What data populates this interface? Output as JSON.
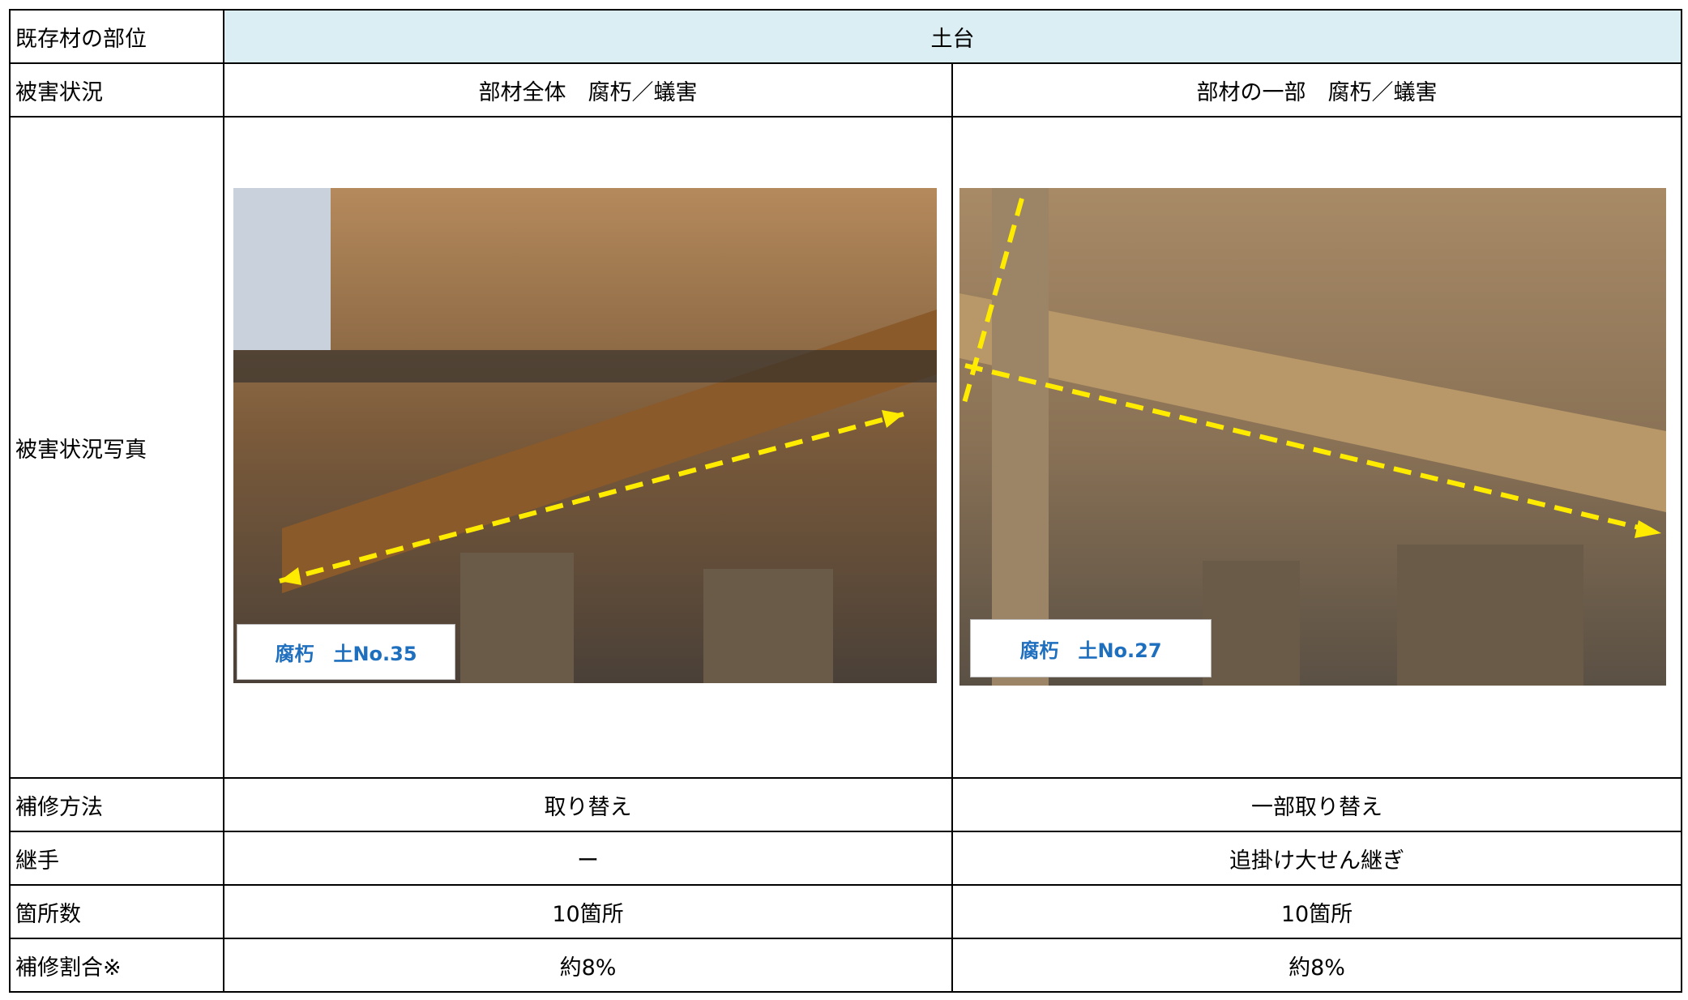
{
  "table": {
    "rows": [
      [
        "既存材の部位",
        "土台"
      ],
      [
        "被害状況",
        "部材全体　腐朽／蟻害",
        "部材の一部　腐朽／蟻害"
      ],
      [
        "被害状況写真",
        "腐朽　土No.35",
        "腐朽　土No.27"
      ],
      [
        "補修方法",
        "取り替え",
        "一部取り替え"
      ],
      [
        "継手",
        "ー",
        "追掛け大せん継ぎ"
      ],
      [
        "箇所数",
        "10箇所",
        "10箇所"
      ],
      [
        "補修割合※",
        "約8%",
        "約8%"
      ]
    ]
  }
}
